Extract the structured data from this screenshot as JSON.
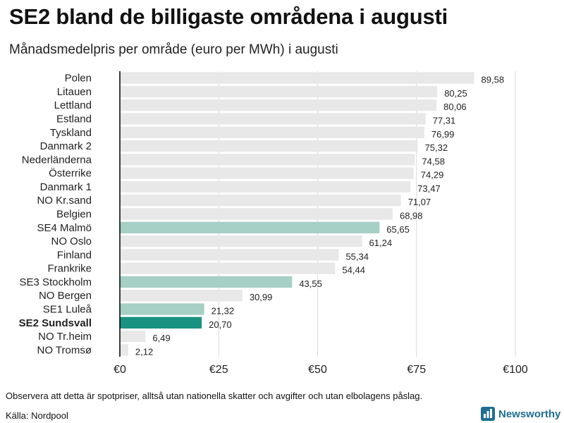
{
  "title": "SE2 bland de billigaste områdena i augusti",
  "subtitle": "Månadsmedelpris per område (euro per MWh) i augusti",
  "footnote": "Observera att detta är spotpriser, alltså utan nationella skatter och avgifter och utan elbolagens påslag.",
  "source": "Källa: Nordpool",
  "brand": "Newsworthy",
  "colors": {
    "default_bar": "#e8e8e8",
    "se_bar": "#a6cfc6",
    "highlight_bar": "#1a9281",
    "grid": "#d9d9d9",
    "axis": "#000000",
    "brand": "#1e6f92"
  },
  "chart_data": {
    "type": "bar",
    "orientation": "horizontal",
    "title": "SE2 bland de billigaste områdena i augusti",
    "subtitle": "Månadsmedelpris per område (euro per MWh) i augusti",
    "xlabel": "",
    "ylabel": "",
    "xlim": [
      0,
      100
    ],
    "xticks": [
      0,
      25,
      50,
      75,
      100
    ],
    "xtick_labels": [
      "€0",
      "€25",
      "€50",
      "€75",
      "€100"
    ],
    "grid": true,
    "categories": [
      "Polen",
      "Litauen",
      "Lettland",
      "Estland",
      "Tyskland",
      "Danmark 2",
      "Nederländerna",
      "Österrike",
      "Danmark 1",
      "NO Kr.sand",
      "Belgien",
      "SE4 Malmö",
      "NO Oslo",
      "Finland",
      "Frankrike",
      "SE3 Stockholm",
      "NO Bergen",
      "SE1 Luleå",
      "SE2 Sundsvall",
      "NO Tr.heim",
      "NO Tromsø"
    ],
    "values": [
      89.58,
      80.25,
      80.06,
      77.31,
      76.99,
      75.32,
      74.58,
      74.29,
      73.47,
      71.07,
      68.98,
      65.65,
      61.24,
      55.34,
      54.44,
      43.55,
      30.99,
      21.32,
      20.7,
      6.49,
      2.12
    ],
    "value_labels": [
      "89,58",
      "80,25",
      "80,06",
      "77,31",
      "76,99",
      "75,32",
      "74,58",
      "74,29",
      "73,47",
      "71,07",
      "68,98",
      "65,65",
      "61,24",
      "55,34",
      "54,44",
      "43,55",
      "30,99",
      "21,32",
      "20,70",
      "6,49",
      "2,12"
    ],
    "bar_style": [
      "default",
      "default",
      "default",
      "default",
      "default",
      "default",
      "default",
      "default",
      "default",
      "default",
      "default",
      "se",
      "default",
      "default",
      "default",
      "se",
      "default",
      "se",
      "highlight",
      "default",
      "default"
    ],
    "highlight_category": "SE2 Sundsvall"
  }
}
